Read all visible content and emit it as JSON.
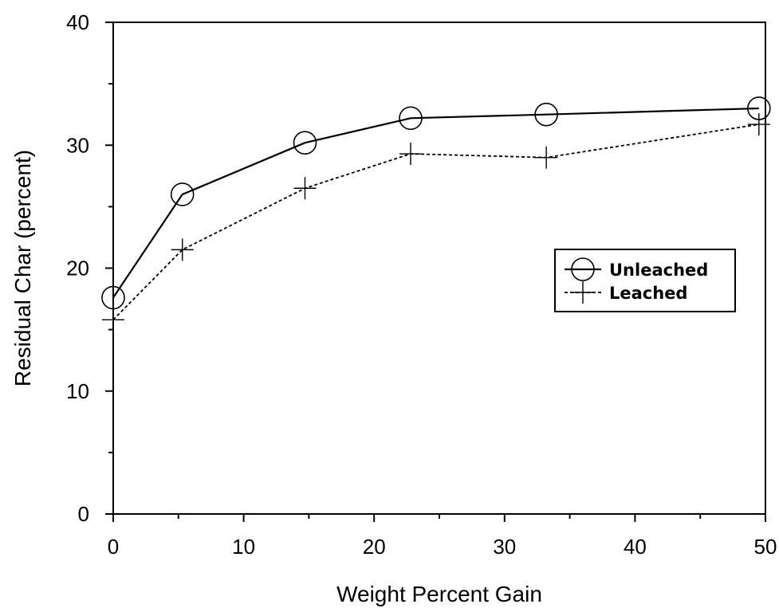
{
  "chart_data": {
    "type": "line",
    "title": "",
    "xlabel": "Weight Percent Gain",
    "ylabel": "Residual Char (percent)",
    "xlim": [
      0,
      50
    ],
    "ylim": [
      0,
      40
    ],
    "xticks": [
      0,
      10,
      20,
      30,
      40,
      50
    ],
    "yticks": [
      0,
      10,
      20,
      30,
      40
    ],
    "grid": false,
    "legend_position": "right",
    "series": [
      {
        "name": "Unleached",
        "marker": "circle",
        "line_style": "solid",
        "x": [
          0,
          5.3,
          14.7,
          22.8,
          33.2,
          49.5
        ],
        "y": [
          17.6,
          26.0,
          30.2,
          32.2,
          32.5,
          33.0
        ]
      },
      {
        "name": "Leached",
        "marker": "plus",
        "line_style": "dotted",
        "x": [
          0,
          5.3,
          14.7,
          22.8,
          33.2,
          49.5
        ],
        "y": [
          15.8,
          21.5,
          26.5,
          29.3,
          29.0,
          31.7
        ]
      }
    ]
  }
}
